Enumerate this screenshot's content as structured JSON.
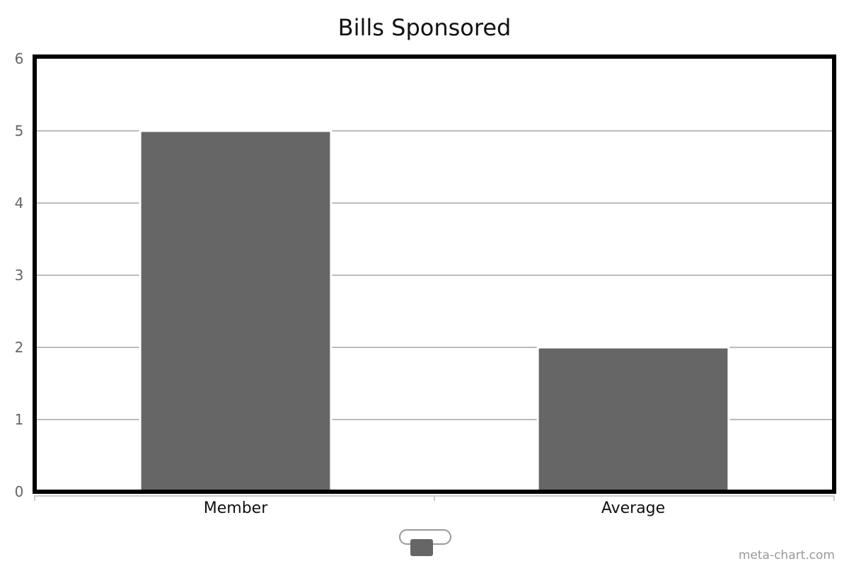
{
  "chart_data": {
    "type": "bar",
    "title": "Bills Sponsored",
    "categories": [
      "Member",
      "Average"
    ],
    "values": [
      5,
      2
    ],
    "ylim": [
      0,
      6
    ],
    "yticks": [
      "0",
      "1",
      "2",
      "3",
      "4",
      "5",
      "6"
    ],
    "grid": true,
    "legend": "bottom-center",
    "bar_color": "#666666",
    "grid_color": "#bbbbbb"
  },
  "credit": "meta-chart.com"
}
